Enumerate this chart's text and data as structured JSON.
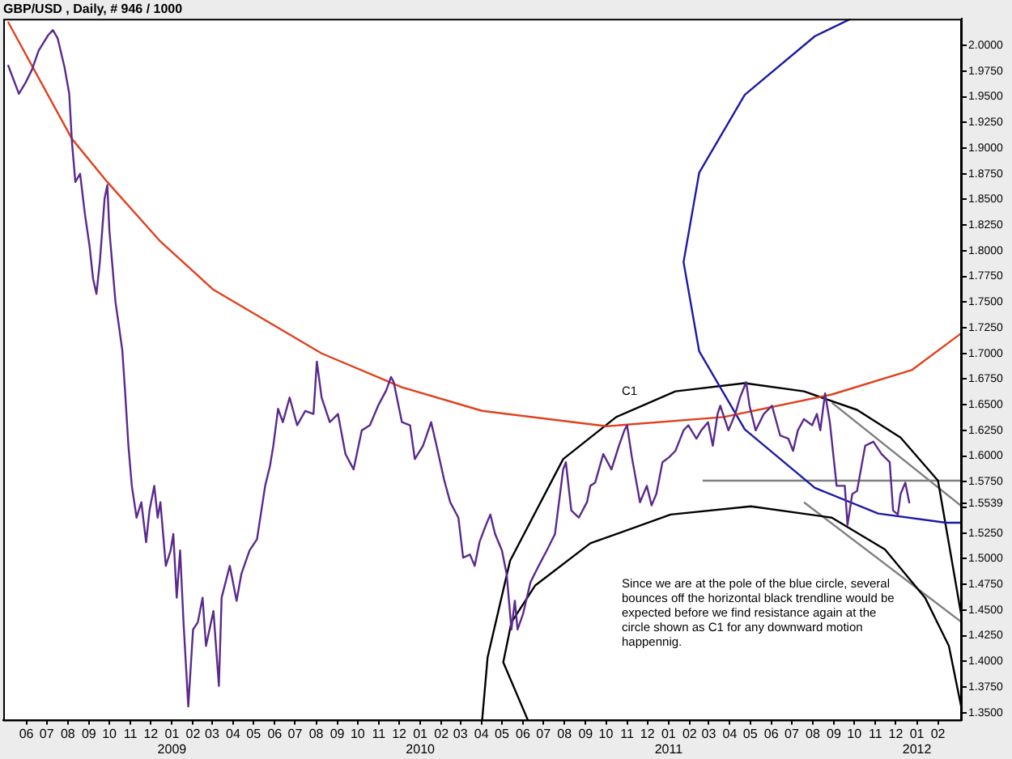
{
  "chart_data": {
    "type": "line",
    "title": "GBP/USD , Daily, # 946 / 1000",
    "marker": "none",
    "grid": false,
    "legend": false,
    "line_style": "solid",
    "xlim": [
      "2008-04-28",
      "2012-03-07"
    ],
    "xticks": [
      {
        "value": "2008-06-01",
        "label": "06"
      },
      {
        "value": "2008-07-01",
        "label": "07"
      },
      {
        "value": "2008-08-01",
        "label": "08"
      },
      {
        "value": "2008-09-01",
        "label": "09"
      },
      {
        "value": "2008-10-01",
        "label": "10"
      },
      {
        "value": "2008-11-01",
        "label": "11"
      },
      {
        "value": "2008-12-01",
        "label": "12"
      },
      {
        "value": "2009-01-01",
        "label": "01\n2009"
      },
      {
        "value": "2009-02-01",
        "label": "02"
      },
      {
        "value": "2009-03-01",
        "label": "03"
      },
      {
        "value": "2009-04-01",
        "label": "04"
      },
      {
        "value": "2009-05-01",
        "label": "05"
      },
      {
        "value": "2009-06-01",
        "label": "06"
      },
      {
        "value": "2009-07-01",
        "label": "07"
      },
      {
        "value": "2009-08-01",
        "label": "08"
      },
      {
        "value": "2009-09-01",
        "label": "09"
      },
      {
        "value": "2009-10-01",
        "label": "10"
      },
      {
        "value": "2009-11-01",
        "label": "11"
      },
      {
        "value": "2009-12-01",
        "label": "12"
      },
      {
        "value": "2010-01-01",
        "label": "01\n2010"
      },
      {
        "value": "2010-02-01",
        "label": "02"
      },
      {
        "value": "2010-03-01",
        "label": "03"
      },
      {
        "value": "2010-04-01",
        "label": "04"
      },
      {
        "value": "2010-05-01",
        "label": "05"
      },
      {
        "value": "2010-06-01",
        "label": "06"
      },
      {
        "value": "2010-07-01",
        "label": "07"
      },
      {
        "value": "2010-08-01",
        "label": "08"
      },
      {
        "value": "2010-09-01",
        "label": "09"
      },
      {
        "value": "2010-10-01",
        "label": "10"
      },
      {
        "value": "2010-11-01",
        "label": "11"
      },
      {
        "value": "2010-12-01",
        "label": "12"
      },
      {
        "value": "2011-01-01",
        "label": "01\n2011"
      },
      {
        "value": "2011-02-01",
        "label": "02"
      },
      {
        "value": "2011-03-01",
        "label": "03"
      },
      {
        "value": "2011-04-01",
        "label": "04"
      },
      {
        "value": "2011-05-01",
        "label": "05"
      },
      {
        "value": "2011-06-01",
        "label": "06"
      },
      {
        "value": "2011-07-01",
        "label": "07"
      },
      {
        "value": "2011-08-01",
        "label": "08"
      },
      {
        "value": "2011-09-01",
        "label": "09"
      },
      {
        "value": "2011-10-01",
        "label": "10"
      },
      {
        "value": "2011-11-01",
        "label": "11"
      },
      {
        "value": "2011-12-01",
        "label": "12"
      },
      {
        "value": "2012-01-01",
        "label": "01\n2012"
      },
      {
        "value": "2012-02-01",
        "label": "02"
      }
    ],
    "ylim": [
      1.343,
      2.026
    ],
    "yticks": [
      {
        "value": 1.35,
        "label": "1.3500"
      },
      {
        "value": 1.375,
        "label": "1.3750"
      },
      {
        "value": 1.4,
        "label": "1.4000"
      },
      {
        "value": 1.425,
        "label": "1.4250"
      },
      {
        "value": 1.45,
        "label": "1.4500"
      },
      {
        "value": 1.475,
        "label": "1.4750"
      },
      {
        "value": 1.5,
        "label": "1.5000"
      },
      {
        "value": 1.525,
        "label": "1.5250"
      },
      {
        "value": 1.55,
        "label": null
      },
      {
        "value": 1.5539,
        "label": "1.5539"
      },
      {
        "value": 1.575,
        "label": "1.5750"
      },
      {
        "value": 1.6,
        "label": "1.6000"
      },
      {
        "value": 1.625,
        "label": "1.6250"
      },
      {
        "value": 1.65,
        "label": "1.6500"
      },
      {
        "value": 1.675,
        "label": "1.6750"
      },
      {
        "value": 1.7,
        "label": "1.7000"
      },
      {
        "value": 1.725,
        "label": "1.7250"
      },
      {
        "value": 1.75,
        "label": "1.7500"
      },
      {
        "value": 1.775,
        "label": "1.7750"
      },
      {
        "value": 1.8,
        "label": "1.8000"
      },
      {
        "value": 1.825,
        "label": "1.8250"
      },
      {
        "value": 1.85,
        "label": "1.8500"
      },
      {
        "value": 1.875,
        "label": "1.8750"
      },
      {
        "value": 1.9,
        "label": "1.9000"
      },
      {
        "value": 1.925,
        "label": "1.9250"
      },
      {
        "value": 1.95,
        "label": "1.9500"
      },
      {
        "value": 1.975,
        "label": "1.9750"
      },
      {
        "value": 2.0,
        "label": "2.0000"
      }
    ],
    "annotations": [
      "C1",
      "Since we are at the pole of the blue circle, several\nbounces off the horizontal black trendline would be\nexpected before we find resistance again at the\ncircle shown as C1 for any downward motion\nhappennig."
    ],
    "series": [
      {
        "color": "#5a2a8c",
        "x": [
          "2008-05-05",
          "2008-05-21",
          "2008-05-31",
          "2008-06-09",
          "2008-06-19",
          "2008-07-03",
          "2008-07-10",
          "2008-07-17",
          "2008-07-27",
          "2008-08-03",
          "2008-08-07",
          "2008-08-12",
          "2008-08-19",
          "2008-08-26",
          "2008-09-02",
          "2008-09-07",
          "2008-09-12",
          "2008-09-17",
          "2008-09-24",
          "2008-09-28",
          "2008-10-01",
          "2008-10-05",
          "2008-10-10",
          "2008-10-15",
          "2008-10-20",
          "2008-10-24",
          "2008-10-29",
          "2008-11-03",
          "2008-11-10",
          "2008-11-17",
          "2008-11-24",
          "2008-11-29",
          "2008-12-06",
          "2008-12-11",
          "2008-12-15",
          "2008-12-23",
          "2008-12-30",
          "2009-01-03",
          "2009-01-08",
          "2009-01-13",
          "2009-01-18",
          "2009-01-25",
          "2009-02-01",
          "2009-02-08",
          "2009-02-15",
          "2009-02-20",
          "2009-03-03",
          "2009-03-11",
          "2009-03-15",
          "2009-03-27",
          "2009-04-06",
          "2009-04-13",
          "2009-04-25",
          "2009-05-06",
          "2009-05-18",
          "2009-05-25",
          "2009-05-30",
          "2009-06-06",
          "2009-06-13",
          "2009-06-23",
          "2009-07-04",
          "2009-07-16",
          "2009-07-28",
          "2009-08-02",
          "2009-08-09",
          "2009-08-21",
          "2009-09-02",
          "2009-09-13",
          "2009-09-25",
          "2009-10-07",
          "2009-10-19",
          "2009-10-31",
          "2009-11-12",
          "2009-11-19",
          "2009-11-23",
          "2009-12-05",
          "2009-12-17",
          "2009-12-24",
          "2010-01-05",
          "2010-01-17",
          "2010-01-26",
          "2010-02-05",
          "2010-02-14",
          "2010-02-26",
          "2010-03-05",
          "2010-03-15",
          "2010-03-22",
          "2010-03-29",
          "2010-04-07",
          "2010-04-14",
          "2010-04-21",
          "2010-05-01",
          "2010-05-08",
          "2010-05-15",
          "2010-05-20",
          "2010-05-24",
          "2010-06-01",
          "2010-06-12",
          "2010-06-24",
          "2010-07-06",
          "2010-07-18",
          "2010-07-30",
          "2010-08-03",
          "2010-08-11",
          "2010-08-22",
          "2010-09-03",
          "2010-09-08",
          "2010-09-15",
          "2010-09-27",
          "2010-10-09",
          "2010-10-20",
          "2010-10-28",
          "2010-11-01",
          "2010-11-08",
          "2010-11-20",
          "2010-11-30",
          "2010-12-07",
          "2010-12-14",
          "2010-12-23",
          "2011-01-02",
          "2011-01-11",
          "2011-01-23",
          "2011-01-30",
          "2011-02-11",
          "2011-02-18",
          "2011-02-28",
          "2011-03-07",
          "2011-03-14",
          "2011-03-18",
          "2011-03-30",
          "2011-04-09",
          "2011-04-16",
          "2011-04-25",
          "2011-04-30",
          "2011-05-09",
          "2011-05-21",
          "2011-06-02",
          "2011-06-14",
          "2011-06-26",
          "2011-07-03",
          "2011-07-10",
          "2011-07-19",
          "2011-07-31",
          "2011-08-07",
          "2011-08-12",
          "2011-08-19",
          "2011-08-26",
          "2011-09-05",
          "2011-09-17",
          "2011-09-21",
          "2011-09-28",
          "2011-10-05",
          "2011-10-17",
          "2011-10-29",
          "2011-11-10",
          "2011-11-22",
          "2011-11-27",
          "2011-12-04",
          "2011-12-08",
          "2011-12-15",
          "2011-12-21"
        ],
        "values": [
          1.981,
          1.953,
          1.964,
          1.976,
          1.995,
          2.01,
          2.015,
          2.007,
          1.979,
          1.953,
          1.906,
          1.867,
          1.875,
          1.836,
          1.804,
          1.773,
          1.758,
          1.789,
          1.851,
          1.864,
          1.82,
          1.789,
          1.75,
          1.727,
          1.703,
          1.664,
          1.61,
          1.571,
          1.54,
          1.555,
          1.516,
          1.547,
          1.571,
          1.54,
          1.555,
          1.493,
          1.508,
          1.524,
          1.462,
          1.508,
          1.438,
          1.356,
          1.431,
          1.438,
          1.462,
          1.415,
          1.449,
          1.376,
          1.462,
          1.493,
          1.459,
          1.485,
          1.508,
          1.519,
          1.571,
          1.59,
          1.61,
          1.646,
          1.633,
          1.657,
          1.63,
          1.644,
          1.641,
          1.692,
          1.657,
          1.633,
          1.641,
          1.602,
          1.587,
          1.625,
          1.63,
          1.649,
          1.664,
          1.677,
          1.672,
          1.633,
          1.63,
          1.597,
          1.61,
          1.633,
          1.607,
          1.577,
          1.555,
          1.54,
          1.501,
          1.504,
          1.493,
          1.516,
          1.532,
          1.543,
          1.524,
          1.508,
          1.485,
          1.431,
          1.459,
          1.431,
          1.446,
          1.477,
          1.493,
          1.508,
          1.524,
          1.587,
          1.594,
          1.547,
          1.54,
          1.555,
          1.571,
          1.574,
          1.602,
          1.587,
          1.61,
          1.625,
          1.63,
          1.599,
          1.555,
          1.571,
          1.552,
          1.563,
          1.594,
          1.599,
          1.605,
          1.625,
          1.63,
          1.617,
          1.625,
          1.633,
          1.61,
          1.641,
          1.649,
          1.625,
          1.641,
          1.657,
          1.672,
          1.649,
          1.625,
          1.641,
          1.649,
          1.62,
          1.617,
          1.605,
          1.625,
          1.636,
          1.63,
          1.641,
          1.625,
          1.661,
          1.633,
          1.571,
          1.571,
          1.533,
          1.563,
          1.566,
          1.61,
          1.614,
          1.602,
          1.594,
          1.547,
          1.543,
          1.563,
          1.574,
          1.5539
        ]
      },
      {
        "type": "line",
        "color": "#e0401c",
        "x": [
          "2008-05-05",
          "2008-08-07",
          "2008-09-28",
          "2008-12-15",
          "2009-03-03",
          "2009-08-09",
          "2009-12-05",
          "2010-04-02",
          "2010-10-02",
          "2011-03-23",
          "2011-08-29",
          "2011-12-25",
          "2012-03-07"
        ],
        "values": [
          2.023,
          1.909,
          1.867,
          1.809,
          1.762,
          1.7,
          1.667,
          1.644,
          1.629,
          1.638,
          1.66,
          1.684,
          1.72
        ]
      },
      {
        "type": "line",
        "color": "#1a1aa8",
        "x": [
          "2011-09-26",
          "2011-08-04",
          "2011-04-23",
          "2011-02-15",
          "2011-01-23",
          "2011-02-15",
          "2011-04-23",
          "2011-08-04",
          "2011-11-05",
          "2012-02-13",
          "2012-03-07"
        ],
        "values": [
          2.026,
          2.009,
          1.952,
          1.876,
          1.789,
          1.702,
          1.626,
          1.569,
          1.544,
          1.535,
          1.535
        ]
      },
      {
        "type": "line",
        "color": "#000000",
        "x": [
          "2010-04-02",
          "2010-04-10",
          "2010-05-13",
          "2010-07-30",
          "2010-10-16",
          "2011-01-11",
          "2011-04-23",
          "2011-07-19",
          "2011-10-05",
          "2011-12-08",
          "2012-02-01",
          "2012-03-07"
        ],
        "values": [
          1.343,
          1.404,
          1.498,
          1.597,
          1.638,
          1.663,
          1.671,
          1.663,
          1.645,
          1.618,
          1.576,
          1.442
        ]
      },
      {
        "type": "line",
        "color": "#000000",
        "x": [
          "2010-06-08",
          "2010-05-03",
          "2010-05-15",
          "2010-06-19",
          "2010-09-08",
          "2011-01-04",
          "2011-05-02",
          "2011-08-29",
          "2011-11-15",
          "2012-01-13",
          "2012-02-17",
          "2012-03-07"
        ],
        "values": [
          1.343,
          1.399,
          1.438,
          1.474,
          1.515,
          1.543,
          1.551,
          1.54,
          1.509,
          1.462,
          1.415,
          1.353
        ]
      },
      {
        "type": "line",
        "color": "#808080",
        "x": [
          "2011-02-20",
          "2012-03-07"
        ],
        "values": [
          1.576,
          1.576
        ]
      },
      {
        "type": "line",
        "color": "#808080",
        "x": [
          "2011-08-29",
          "2012-03-07"
        ],
        "values": [
          1.652,
          1.551
        ]
      },
      {
        "type": "line",
        "color": "#808080",
        "x": [
          "2011-07-19",
          "2012-03-07"
        ],
        "values": [
          1.555,
          1.438
        ]
      }
    ]
  }
}
